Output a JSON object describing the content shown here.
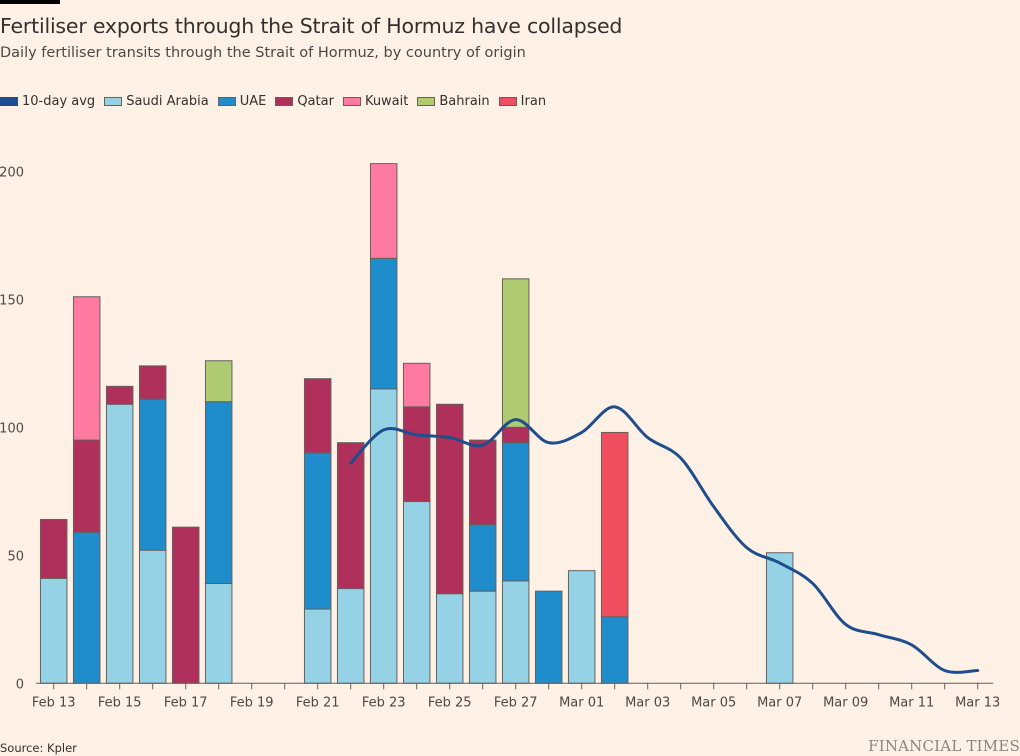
{
  "header": {
    "title": "Fertiliser exports through the Strait of Hormuz have collapsed",
    "subtitle": "Daily fertiliser transits through the Strait of Hormuz, by country of origin"
  },
  "footer": {
    "source": "Source: Kpler",
    "brand": "FINANCIAL TIMES"
  },
  "chart_data": {
    "type": "bar",
    "stacked": true,
    "title": "Fertiliser exports through the Strait of Hormuz have collapsed",
    "subtitle": "Daily fertiliser transits through the Strait of Hormuz, by country of origin",
    "xlabel": "",
    "ylabel": "",
    "ylim": [
      0,
      210
    ],
    "yticks": [
      0,
      50,
      100,
      150,
      200
    ],
    "grid": false,
    "legend_position": "top-left",
    "categories": [
      "Feb 13",
      "Feb 14",
      "Feb 15",
      "Feb 16",
      "Feb 17",
      "Feb 18",
      "Feb 19",
      "Feb 20",
      "Feb 21",
      "Feb 22",
      "Feb 23",
      "Feb 24",
      "Feb 25",
      "Feb 26",
      "Feb 27",
      "Feb 28",
      "Mar 01",
      "Mar 02",
      "Mar 03",
      "Mar 04",
      "Mar 05",
      "Mar 06",
      "Mar 07",
      "Mar 08",
      "Mar 09",
      "Mar 10",
      "Mar 11",
      "Mar 12",
      "Mar 13"
    ],
    "xtick_labels": [
      "Feb 13",
      "Feb 15",
      "Feb 17",
      "Feb 19",
      "Feb 21",
      "Feb 23",
      "Feb 25",
      "Feb 27",
      "Mar 01",
      "Mar 03",
      "Mar 05",
      "Mar 07",
      "Mar 09",
      "Mar 11",
      "Mar 13"
    ],
    "series": [
      {
        "name": "Saudi Arabia",
        "color": "#96d2e6",
        "values": [
          41,
          0,
          109,
          52,
          0,
          39,
          0,
          0,
          29,
          37,
          115,
          71,
          35,
          36,
          40,
          0,
          44,
          0,
          0,
          0,
          0,
          0,
          51,
          0,
          0,
          0,
          0,
          0,
          0
        ]
      },
      {
        "name": "UAE",
        "color": "#1f8dcc",
        "values": [
          0,
          59,
          0,
          59,
          0,
          71,
          0,
          0,
          61,
          0,
          51,
          0,
          0,
          26,
          54,
          36,
          0,
          26,
          0,
          0,
          0,
          0,
          0,
          0,
          0,
          0,
          0,
          0,
          0
        ]
      },
      {
        "name": "Qatar",
        "color": "#b0305c",
        "values": [
          23,
          36,
          7,
          13,
          61,
          0,
          0,
          0,
          29,
          57,
          0,
          37,
          74,
          33,
          6,
          0,
          0,
          0,
          0,
          0,
          0,
          0,
          0,
          0,
          0,
          0,
          0,
          0,
          0
        ]
      },
      {
        "name": "Kuwait",
        "color": "#ff7aa0",
        "values": [
          0,
          56,
          0,
          0,
          0,
          0,
          0,
          0,
          0,
          0,
          37,
          17,
          0,
          0,
          0,
          0,
          0,
          0,
          0,
          0,
          0,
          0,
          0,
          0,
          0,
          0,
          0,
          0,
          0
        ]
      },
      {
        "name": "Bahrain",
        "color": "#aecb72",
        "values": [
          0,
          0,
          0,
          0,
          0,
          16,
          0,
          0,
          0,
          0,
          0,
          0,
          0,
          0,
          58,
          0,
          0,
          0,
          0,
          0,
          0,
          0,
          0,
          0,
          0,
          0,
          0,
          0,
          0
        ]
      },
      {
        "name": "Iran",
        "color": "#f04e5e",
        "values": [
          0,
          0,
          0,
          0,
          0,
          0,
          0,
          0,
          0,
          0,
          0,
          0,
          0,
          0,
          0,
          0,
          0,
          72,
          0,
          0,
          0,
          0,
          0,
          0,
          0,
          0,
          0,
          0,
          0
        ]
      }
    ],
    "line_series": {
      "name": "10-day avg",
      "type": "line",
      "color": "#1f4e8c",
      "x": [
        "Feb 22",
        "Feb 23",
        "Feb 24",
        "Feb 25",
        "Feb 26",
        "Feb 27",
        "Feb 28",
        "Mar 01",
        "Mar 02",
        "Mar 03",
        "Mar 04",
        "Mar 05",
        "Mar 06",
        "Mar 07",
        "Mar 08",
        "Mar 09",
        "Mar 10",
        "Mar 11",
        "Mar 12",
        "Mar 13"
      ],
      "values": [
        86,
        99,
        97,
        96,
        93,
        103,
        94,
        98,
        108,
        96,
        88,
        69,
        53,
        47,
        39,
        23,
        19,
        15,
        5,
        5
      ]
    },
    "legend": [
      "10-day avg",
      "Saudi Arabia",
      "UAE",
      "Qatar",
      "Kuwait",
      "Bahrain",
      "Iran"
    ]
  }
}
